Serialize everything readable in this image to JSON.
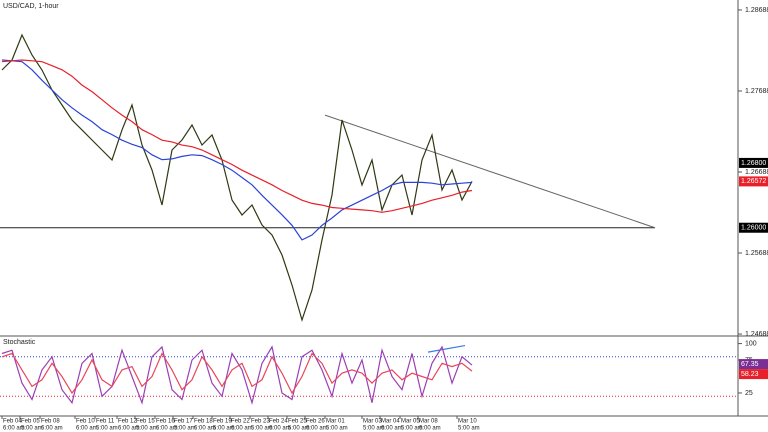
{
  "chart_data": [
    {
      "type": "line",
      "title": "USD/CAD, 1-hour",
      "x": [
        0,
        1,
        2,
        3,
        4,
        5,
        6,
        7,
        8,
        9,
        10,
        11,
        12,
        13,
        14,
        15,
        16,
        17,
        18,
        19,
        20,
        21,
        22,
        23,
        24,
        25,
        26,
        27,
        28,
        29,
        30,
        31,
        32,
        33,
        34,
        35,
        36,
        37,
        38,
        39,
        40,
        41,
        42,
        43,
        44,
        45,
        46,
        47
      ],
      "series": [
        {
          "color": "#2d3a12",
          "values": [
            1.27947,
            1.28071,
            1.28379,
            1.28132,
            1.27947,
            1.277,
            1.27515,
            1.2733,
            1.27207,
            1.27083,
            1.2696,
            1.26836,
            1.27207,
            1.27515,
            1.27021,
            1.26713,
            1.26281,
            1.2696,
            1.27083,
            1.27268,
            1.27021,
            1.27145,
            1.26836,
            1.26342,
            1.26157,
            1.26281,
            1.26034,
            1.2591,
            1.25663,
            1.25293,
            1.24861,
            1.25231,
            1.25848,
            1.26404,
            1.2733,
            1.2696,
            1.26528,
            1.26836,
            1.26219,
            1.26528,
            1.26651,
            1.26157,
            1.26836,
            1.27145,
            1.26466,
            1.26713,
            1.26342,
            1.26572
          ]
        },
        {
          "color": "#2a43d6",
          "values": [
            1.2807,
            1.2806,
            1.2805,
            1.2795,
            1.2782,
            1.277,
            1.2758,
            1.2748,
            1.2739,
            1.2731,
            1.2721,
            1.2715,
            1.2708,
            1.2703,
            1.2699,
            1.269,
            1.2684,
            1.2685,
            1.2688,
            1.269,
            1.2689,
            1.2684,
            1.2678,
            1.2671,
            1.2662,
            1.2653,
            1.264,
            1.2628,
            1.2616,
            1.2603,
            1.2585,
            1.2591,
            1.2603,
            1.2612,
            1.2622,
            1.2628,
            1.2634,
            1.264,
            1.2646,
            1.2653,
            1.2656,
            1.2656,
            1.2656,
            1.2655,
            1.2653,
            1.2654,
            1.2655,
            1.2656
          ]
        },
        {
          "color": "#e8202a",
          "values": [
            1.2805,
            1.2806,
            1.2807,
            1.2806,
            1.2805,
            1.28,
            1.2795,
            1.2787,
            1.2776,
            1.2768,
            1.2758,
            1.2748,
            1.2739,
            1.2731,
            1.2721,
            1.2715,
            1.2708,
            1.2706,
            1.2702,
            1.27,
            1.2696,
            1.269,
            1.2684,
            1.2678,
            1.2671,
            1.2665,
            1.2659,
            1.2653,
            1.2646,
            1.264,
            1.2634,
            1.263,
            1.2628,
            1.2625,
            1.2624,
            1.2623,
            1.2622,
            1.2621,
            1.2619,
            1.2621,
            1.2624,
            1.2627,
            1.263,
            1.2634,
            1.2637,
            1.264,
            1.2644,
            1.2646
          ]
        }
      ],
      "xlim": [
        -0.2,
        73.6
      ],
      "ylim": [
        1.24676,
        1.28811
      ],
      "yticks": [
        1.28688,
        1.27688,
        1.26688,
        1.25688,
        1.24688
      ],
      "trendline": {
        "x": [
          32.3,
          65.3
        ],
        "y": [
          1.2739,
          1.26
        ]
      },
      "hline": {
        "value": 1.26,
        "label": "1.26000"
      },
      "level_marker": {
        "value": 1.268,
        "label": "1.26800"
      }
    },
    {
      "type": "line",
      "title": "Stochastic",
      "x": [
        0,
        1,
        2,
        3,
        4,
        5,
        6,
        7,
        8,
        9,
        10,
        11,
        12,
        13,
        14,
        15,
        16,
        17,
        18,
        19,
        20,
        21,
        22,
        23,
        24,
        25,
        26,
        27,
        28,
        29,
        30,
        31,
        32,
        33,
        34,
        35,
        36,
        37,
        38,
        39,
        40,
        41,
        42,
        43,
        44,
        45,
        46,
        47
      ],
      "series": [
        {
          "color": "#9b3fb5",
          "values": [
            85,
            90,
            40,
            15,
            60,
            80,
            30,
            10,
            70,
            85,
            20,
            35,
            90,
            50,
            10,
            80,
            95,
            30,
            15,
            75,
            90,
            40,
            20,
            85,
            60,
            10,
            70,
            95,
            25,
            15,
            80,
            90,
            60,
            20,
            85,
            40,
            75,
            10,
            90,
            50,
            30,
            85,
            20,
            70,
            95,
            40,
            80,
            67.35
          ]
        },
        {
          "color": "#e8475a",
          "values": [
            80,
            85,
            60,
            35,
            45,
            70,
            50,
            25,
            45,
            75,
            45,
            35,
            60,
            65,
            35,
            50,
            85,
            60,
            30,
            45,
            80,
            60,
            35,
            60,
            70,
            35,
            45,
            80,
            55,
            25,
            50,
            85,
            70,
            40,
            55,
            60,
            55,
            40,
            55,
            60,
            45,
            55,
            50,
            45,
            70,
            65,
            70,
            58.23
          ]
        }
      ],
      "xlim": [
        -0.2,
        73.6
      ],
      "ylim": [
        -10,
        110
      ],
      "yticks": [
        25,
        75,
        100
      ],
      "levels": [
        {
          "value": 80,
          "color": "#2a43d6"
        },
        {
          "value": 20,
          "color": "#e8202a"
        }
      ],
      "divergence": {
        "x": [
          42.6,
          46.3
        ],
        "y": [
          87,
          97
        ]
      },
      "xticks": [
        {
          "value": 0,
          "label": "Feb 04"
        },
        {
          "value": 1.8,
          "label": "Feb 05"
        },
        {
          "value": 3.8,
          "label": "Feb 08"
        },
        {
          "value": 7.3,
          "label": "Feb 10"
        },
        {
          "value": 9.3,
          "label": "Feb 11"
        },
        {
          "value": 11.5,
          "label": "Feb 12"
        },
        {
          "value": 13.3,
          "label": "Feb 15"
        },
        {
          "value": 15.3,
          "label": "Feb 16"
        },
        {
          "value": 17.1,
          "label": "Feb 17"
        },
        {
          "value": 19.1,
          "label": "Feb 18"
        },
        {
          "value": 21,
          "label": "Feb 19"
        },
        {
          "value": 22.8,
          "label": "Feb 22"
        },
        {
          "value": 24.8,
          "label": "Feb 23"
        },
        {
          "value": 26.6,
          "label": "Feb 24"
        },
        {
          "value": 28.5,
          "label": "Feb 25"
        },
        {
          "value": 30.3,
          "label": "Feb 26"
        },
        {
          "value": 32.3,
          "label": "Mar 01"
        },
        {
          "value": 36,
          "label": "Mar 03"
        },
        {
          "value": 37.8,
          "label": "Mar 04"
        },
        {
          "value": 39.8,
          "label": "Mar 05"
        },
        {
          "value": 41.6,
          "label": "Mar 08"
        },
        {
          "value": 45.5,
          "label": "Mar 10"
        }
      ],
      "xtick_times": [
        "6:00 am",
        "5:00 am",
        "6:00 am",
        "6:00 am",
        "5:00 am",
        "6:00 am",
        "5:00 am",
        "6:00 am",
        "5:00 am",
        "6:00 am",
        "5:00 am",
        "6:00 am",
        "5:00 am",
        "6:00 am",
        "5:00 am",
        "6:00 am",
        "5:00 am",
        "5:00 am",
        "6:00 am",
        "5:00 am",
        "6:00 am",
        "5:00 am"
      ]
    }
  ]
}
